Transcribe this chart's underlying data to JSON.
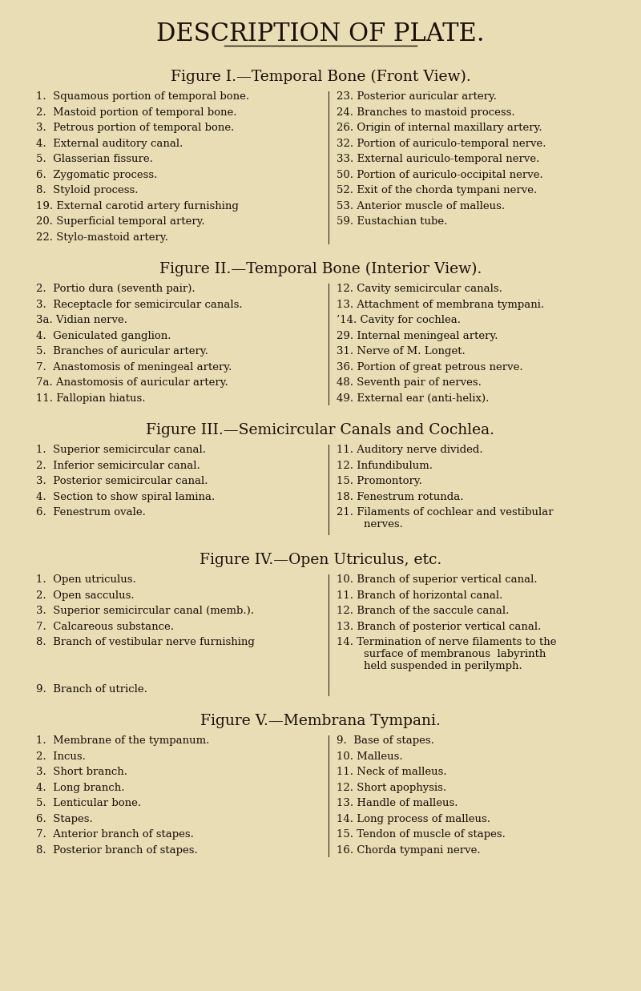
{
  "bg_color": "#e8ddb5",
  "text_color": "#1a1008",
  "title": "DESCRIPTION OF PLATE.",
  "title_fontsize": 22,
  "section_title_fontsize": 13.5,
  "body_fontsize": 9.5,
  "sections": [
    {
      "title": "Figure I.—Temporal Bone (Front View).",
      "left_col": [
        "1.  Squamous portion of temporal bone.",
        "2.  Mastoid portion of temporal bone.",
        "3.  Petrous portion of temporal bone.",
        "4.  External auditory canal.",
        "5.  Glasserian fissure.",
        "6.  Zygomatic process.",
        "8.  Styloid process.",
        "19. External carotid artery furnishing",
        "20. Superficial temporal artery.",
        "22. Stylo-mastoid artery."
      ],
      "right_col": [
        "23. Posterior auricular artery.",
        "24. Branches to mastoid process.",
        "26. Origin of internal maxillary artery.",
        "32. Portion of auriculo-temporal nerve.",
        "33. External auriculo-temporal nerve.",
        "50. Portion of auriculo-occipital nerve.",
        "52. Exit of the chorda tympani nerve.",
        "53. Anterior muscle of malleus.",
        "59. Eustachian tube.",
        ""
      ]
    },
    {
      "title": "Figure II.—Temporal Bone (Interior View).",
      "left_col": [
        "2.  Portio dura (seventh pair).",
        "3.  Receptacle for semicircular canals.",
        "3a. Vidian nerve.",
        "4.  Geniculated ganglion.",
        "5.  Branches of auricular artery.",
        "7.  Anastomosis of meningeal artery.",
        "7a. Anastomosis of auricular artery.",
        "11. Fallopian hiatus."
      ],
      "right_col": [
        "12. Cavity semicircular canals.",
        "13. Attachment of membrana tympani.",
        "’14. Cavity for cochlea.",
        "29. Internal meningeal artery.",
        "31. Nerve of M. Longet.",
        "36. Portion of great petrous nerve.",
        "48. Seventh pair of nerves.",
        "49. External ear (anti-helix)."
      ]
    },
    {
      "title": "Figure III.—Semicircular Canals and Cochlea.",
      "left_col": [
        "1.  Superior semicircular canal.",
        "2.  Inferior semicircular canal.",
        "3.  Posterior semicircular canal.",
        "4.  Section to show spiral lamina.",
        "6.  Fenestrum ovale."
      ],
      "right_col": [
        "11. Auditory nerve divided.",
        "12. Infundibulum.",
        "15. Promontory.",
        "18. Fenestrum rotunda.",
        "21. Filaments of cochlear and vestibular\n        nerves."
      ]
    },
    {
      "title": "Figure IV.—Open Utriculus, etc.",
      "left_col": [
        "1.  Open utriculus.",
        "2.  Open sacculus.",
        "3.  Superior semicircular canal (memb.).",
        "7.  Calcareous substance.",
        "8.  Branch of vestibular nerve furnishing",
        "9.  Branch of utricle."
      ],
      "right_col": [
        "10. Branch of superior vertical canal.",
        "11. Branch of horizontal canal.",
        "12. Branch of the saccule canal.",
        "13. Branch of posterior vertical canal.",
        "14. Termination of nerve filaments to the\n        surface of membranous  labyrinth\n        held suspended in perilymph."
      ]
    },
    {
      "title": "Figure V.—Membrana Tympani.",
      "left_col": [
        "1.  Membrane of the tympanum.",
        "2.  Incus.",
        "3.  Short branch.",
        "4.  Long branch.",
        "5.  Lenticular bone.",
        "6.  Stapes.",
        "7.  Anterior branch of stapes.",
        "8.  Posterior branch of stapes."
      ],
      "right_col": [
        "9.  Base of stapes.",
        "10. Malleus.",
        "11. Neck of malleus.",
        "12. Short apophysis.",
        "13. Handle of malleus.",
        "14. Long process of malleus.",
        "15. Tendon of muscle of stapes.",
        "16. Chorda tympani nerve."
      ]
    }
  ]
}
